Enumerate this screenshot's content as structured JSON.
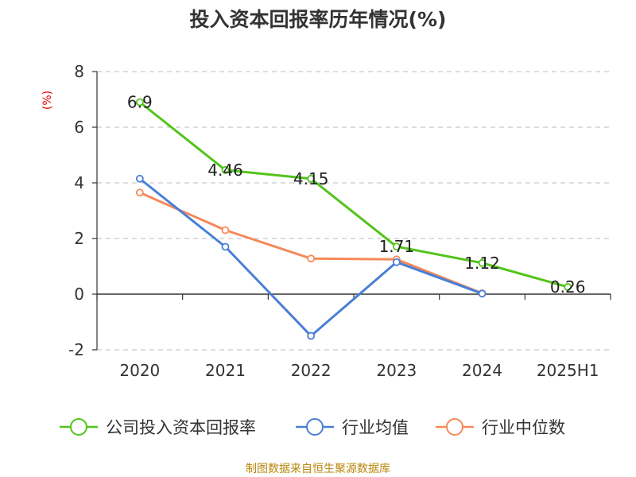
{
  "chart_data": {
    "type": "line",
    "title": "投入资本回报率历年情况(%)",
    "unit_label": "(%)",
    "categories": [
      "2020",
      "2021",
      "2022",
      "2023",
      "2024",
      "2025H1"
    ],
    "ylim": [
      -2,
      8
    ],
    "yticks": [
      -2,
      0,
      2,
      4,
      6,
      8
    ],
    "grid": "horizontal-dashed",
    "legend_placement": "bottom",
    "series": [
      {
        "name": "公司投入资本回报率",
        "color": "#52c41a",
        "values": [
          6.9,
          4.46,
          4.15,
          1.71,
          1.12,
          0.26
        ],
        "data_labels": [
          "6.9",
          "4.46",
          "4.15",
          "1.71",
          "1.12",
          "0.26"
        ]
      },
      {
        "name": "行业均值",
        "color": "#4a7fd6",
        "values": [
          4.15,
          1.7,
          -1.5,
          1.15,
          0.02,
          null
        ]
      },
      {
        "name": "行业中位数",
        "color": "#f5895a",
        "values": [
          3.65,
          2.3,
          1.28,
          1.25,
          0.03,
          null
        ]
      }
    ],
    "source": "制图数据来自恒生聚源数据库"
  }
}
